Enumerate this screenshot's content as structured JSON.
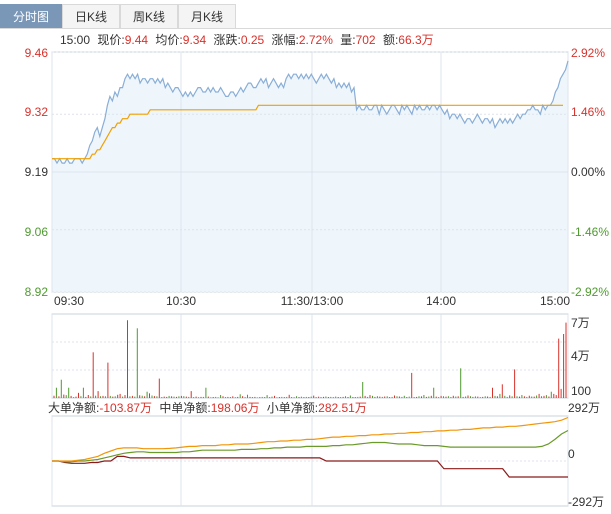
{
  "tabs": [
    {
      "label": "分时图",
      "active": true
    },
    {
      "label": "日K线",
      "active": false
    },
    {
      "label": "周K线",
      "active": false
    },
    {
      "label": "月K线",
      "active": false
    }
  ],
  "info": {
    "time": "15:00",
    "price_label": "现价:",
    "price": "9.44",
    "avg_label": "均价:",
    "avg": "9.34",
    "change_label": "涨跌:",
    "change": "0.25",
    "amp_label": "涨幅:",
    "amp": "2.72%",
    "vol_label": "量:",
    "vol": "702",
    "amount_label": "额:",
    "amount": "66.3万"
  },
  "flow": {
    "big_label": "大单净额:",
    "big_value": "-103.87万",
    "mid_label": "中单净额:",
    "mid_value": "198.06万",
    "small_label": "小单净额:",
    "small_value": "282.51万"
  },
  "colors": {
    "up": "#d9312b",
    "down": "#4e9a2f",
    "price_line": "#8aaed6",
    "avg_line": "#f0a000",
    "area_fill": "#eef6fc",
    "grid": "#dde4ec",
    "flow_big": "#8b1a1a",
    "flow_mid": "#6a9a2a",
    "flow_small": "#f0960a"
  },
  "chart_data": [
    {
      "type": "line",
      "x_ticks": [
        "09:30",
        "10:30",
        "11:30/13:00",
        "14:00",
        "15:00"
      ],
      "y_ticks_left": [
        "9.46",
        "9.32",
        "9.19",
        "9.06",
        "8.92"
      ],
      "y_ticks_right": [
        "2.92%",
        "1.46%",
        "0.00%",
        "-1.46%",
        "-2.92%"
      ],
      "ylim": [
        8.92,
        9.46
      ],
      "prev_close": 9.19,
      "series": [
        {
          "values": [
            9.22,
            9.22,
            9.21,
            9.22,
            9.21,
            9.21,
            9.22,
            9.21,
            9.21,
            9.22,
            9.22,
            9.22,
            9.21,
            9.22,
            9.23,
            9.25,
            9.26,
            9.28,
            9.29,
            9.27,
            9.29,
            9.31,
            9.34,
            9.36,
            9.35,
            9.37,
            9.36,
            9.38,
            9.38,
            9.4,
            9.41,
            9.4,
            9.41,
            9.4,
            9.41,
            9.39,
            9.4,
            9.4,
            9.39,
            9.4,
            9.4,
            9.39,
            9.4,
            9.39,
            9.4,
            9.38,
            9.39,
            9.38,
            9.37,
            9.38,
            9.38,
            9.37,
            9.36,
            9.37,
            9.36,
            9.37,
            9.36,
            9.37,
            9.38,
            9.38,
            9.37,
            9.37,
            9.38,
            9.37,
            9.38,
            9.37,
            9.37,
            9.38,
            9.37,
            9.36,
            9.36,
            9.37,
            9.37,
            9.36,
            9.37,
            9.38,
            9.37,
            9.38,
            9.39,
            9.39,
            9.38,
            9.38,
            9.39,
            9.4,
            9.39,
            9.4,
            9.38,
            9.39,
            9.4,
            9.39,
            9.38,
            9.39,
            9.38,
            9.4,
            9.41,
            9.4,
            9.41,
            9.41,
            9.4,
            9.41,
            9.4,
            9.41,
            9.4,
            9.41,
            9.4,
            9.39,
            9.4,
            9.41,
            9.4,
            9.41,
            9.4,
            9.39,
            9.4,
            9.38,
            9.39,
            9.38,
            9.39,
            9.38,
            9.39,
            9.37,
            9.38,
            9.33,
            9.34,
            9.33,
            9.33,
            9.34,
            9.33,
            9.33,
            9.34,
            9.34,
            9.32,
            9.34,
            9.33,
            9.32,
            9.33,
            9.34,
            9.34,
            9.33,
            9.32,
            9.34,
            9.33,
            9.34,
            9.33,
            9.32,
            9.34,
            9.33,
            9.34,
            9.33,
            9.33,
            9.34,
            9.33,
            9.34,
            9.34,
            9.33,
            9.34,
            9.33,
            9.32,
            9.33,
            9.31,
            9.32,
            9.32,
            9.31,
            9.32,
            9.31,
            9.3,
            9.31,
            9.31,
            9.3,
            9.31,
            9.32,
            9.31,
            9.3,
            9.31,
            9.31,
            9.3,
            9.31,
            9.29,
            9.3,
            9.31,
            9.3,
            9.31,
            9.3,
            9.31,
            9.3,
            9.31,
            9.32,
            9.31,
            9.32,
            9.32,
            9.33,
            9.33,
            9.34,
            9.33,
            9.33,
            9.32,
            9.34,
            9.33,
            9.34,
            9.34,
            9.35,
            9.37,
            9.38,
            9.4,
            9.41,
            9.42,
            9.44
          ]
        },
        {
          "values": [
            9.22,
            9.22,
            9.22,
            9.22,
            9.22,
            9.22,
            9.22,
            9.22,
            9.22,
            9.22,
            9.22,
            9.22,
            9.22,
            9.22,
            9.22,
            9.22,
            9.23,
            9.23,
            9.24,
            9.24,
            9.25,
            9.26,
            9.27,
            9.28,
            9.29,
            9.29,
            9.3,
            9.3,
            9.31,
            9.31,
            9.31,
            9.32,
            9.32,
            9.32,
            9.32,
            9.32,
            9.32,
            9.32,
            9.32,
            9.33,
            9.33,
            9.33,
            9.33,
            9.33,
            9.33,
            9.33,
            9.33,
            9.33,
            9.33,
            9.33,
            9.33,
            9.33,
            9.33,
            9.33,
            9.33,
            9.33,
            9.33,
            9.33,
            9.33,
            9.33,
            9.33,
            9.33,
            9.33,
            9.33,
            9.33,
            9.33,
            9.33,
            9.33,
            9.33,
            9.33,
            9.33,
            9.33,
            9.33,
            9.33,
            9.33,
            9.33,
            9.33,
            9.33,
            9.33,
            9.33,
            9.33,
            9.33,
            9.34,
            9.34,
            9.34,
            9.34,
            9.34,
            9.34,
            9.34,
            9.34,
            9.34,
            9.34,
            9.34,
            9.34,
            9.34,
            9.34,
            9.34,
            9.34,
            9.34,
            9.34,
            9.34,
            9.34,
            9.34,
            9.34,
            9.34,
            9.34,
            9.34,
            9.34,
            9.34,
            9.34,
            9.34,
            9.34,
            9.34,
            9.34,
            9.34,
            9.34,
            9.34,
            9.34,
            9.34,
            9.34,
            9.34,
            9.34,
            9.34,
            9.34,
            9.34,
            9.34,
            9.34,
            9.34,
            9.34,
            9.34,
            9.34,
            9.34,
            9.34,
            9.34,
            9.34,
            9.34,
            9.34,
            9.34,
            9.34,
            9.34,
            9.34,
            9.34,
            9.34,
            9.34,
            9.34,
            9.34,
            9.34,
            9.34,
            9.34,
            9.34,
            9.34,
            9.34,
            9.34,
            9.34,
            9.34,
            9.34,
            9.34,
            9.34,
            9.34,
            9.34,
            9.34,
            9.34,
            9.34,
            9.34,
            9.34,
            9.34,
            9.34,
            9.34,
            9.34,
            9.34,
            9.34,
            9.34,
            9.34,
            9.34,
            9.34,
            9.34,
            9.34,
            9.34,
            9.34,
            9.34,
            9.34,
            9.34,
            9.34,
            9.34,
            9.34,
            9.34,
            9.34,
            9.34,
            9.34,
            9.34,
            9.34,
            9.34,
            9.34,
            9.34,
            9.34,
            9.34,
            9.34,
            9.34,
            9.34,
            9.34,
            9.34,
            9.34,
            9.34,
            9.34
          ]
        }
      ]
    },
    {
      "type": "bar",
      "y_ticks": [
        "7万",
        "4万",
        "100"
      ],
      "ylim": [
        0,
        70000
      ],
      "values": [
        2000,
        9000,
        1500,
        16000,
        3000,
        2500,
        9000,
        1800,
        800,
        1200,
        4500,
        1600,
        9000,
        1000,
        2600,
        1400,
        40000,
        2000,
        6000,
        1500,
        1800,
        1500,
        31000,
        1800,
        1200,
        1500,
        2800,
        3600,
        1200,
        2500,
        68000,
        1500,
        1800,
        1200,
        61000,
        2400,
        2000,
        1500,
        5500,
        4000,
        2200,
        1700,
        1500,
        17000,
        900,
        1200,
        1000,
        1800,
        1500,
        1200,
        1000,
        1500,
        1800,
        1600,
        1200,
        1000,
        6000,
        800,
        1200,
        700,
        1000,
        1000,
        9000,
        1200,
        600,
        900,
        1000,
        500,
        2600,
        1500,
        800,
        1000,
        900,
        1500,
        700,
        1000,
        3200,
        1600,
        800,
        2800,
        1000,
        900,
        1000,
        500,
        800,
        1000,
        800,
        2500,
        700,
        1200,
        1800,
        600,
        900,
        1000,
        800,
        1000,
        2800,
        900,
        600,
        1600,
        900,
        1100,
        800,
        1000,
        900,
        1200,
        2100,
        900,
        1100,
        900,
        1000,
        1300,
        900,
        1000,
        700,
        1200,
        900,
        800,
        1000,
        1600,
        900,
        2200,
        900,
        800,
        1000,
        1200,
        14000,
        1800,
        1000,
        2500,
        1800,
        1000,
        1600,
        1200,
        1000,
        1300,
        1500,
        800,
        1000,
        2200,
        1600,
        1300,
        1000,
        1900,
        900,
        1200,
        22000,
        900,
        1000,
        1600,
        1400,
        2600,
        1000,
        1300,
        1900,
        9000,
        1200,
        800,
        1800,
        1500,
        1200,
        1600,
        800,
        1900,
        1300,
        1500,
        26000,
        1000,
        1300,
        2200,
        1500,
        1000,
        1400,
        1200,
        800,
        1000,
        1500,
        1300,
        1000,
        9000,
        1800,
        1500,
        3600,
        12000,
        1900,
        1000,
        2300,
        1500,
        25000,
        1600,
        1200,
        2600,
        1500,
        1000,
        2000,
        1300,
        1200,
        2200,
        3600,
        1500,
        1800,
        2500,
        1300,
        5500,
        3600,
        2500,
        52000,
        8000,
        56000,
        66000
      ],
      "colors": [
        "up",
        "down",
        "up",
        "down",
        "up",
        "down",
        "down",
        "up",
        "down",
        "up",
        "up",
        "down",
        "down",
        "up",
        "up",
        "down",
        "up",
        "down",
        "up",
        "down",
        "up",
        "down",
        "up",
        "down",
        "up",
        "down",
        "up",
        "up",
        "down",
        "up",
        "up",
        "down",
        "up",
        "down",
        "down",
        "up",
        "down",
        "up",
        "down",
        "up",
        "down",
        "up",
        "down",
        "up",
        "down",
        "up",
        "up",
        "down",
        "up",
        "down",
        "up",
        "down",
        "up",
        "down",
        "up",
        "down",
        "up",
        "down",
        "up",
        "down",
        "up",
        "down",
        "down",
        "up",
        "down",
        "up",
        "down",
        "up",
        "down",
        "up",
        "down",
        "up",
        "down",
        "up",
        "down",
        "up",
        "down",
        "up",
        "down",
        "down",
        "up",
        "down",
        "up",
        "down",
        "up",
        "down",
        "up",
        "down",
        "up",
        "down",
        "up",
        "down",
        "up",
        "down",
        "up",
        "down",
        "up",
        "down",
        "up",
        "down",
        "up",
        "down",
        "up",
        "down",
        "up",
        "down",
        "up",
        "down",
        "up",
        "down",
        "up",
        "down",
        "up",
        "down",
        "up",
        "down",
        "up",
        "down",
        "up",
        "down",
        "up",
        "down",
        "up",
        "up",
        "down",
        "up",
        "down",
        "up",
        "down",
        "up",
        "down",
        "up",
        "down",
        "up",
        "down",
        "up",
        "down",
        "up",
        "down",
        "up",
        "down",
        "up",
        "down",
        "down",
        "up",
        "down",
        "up",
        "down",
        "up",
        "down",
        "up",
        "down",
        "up",
        "down",
        "up",
        "down",
        "up",
        "down",
        "up",
        "down",
        "up",
        "down",
        "up",
        "up",
        "down",
        "up",
        "down",
        "up",
        "down",
        "up",
        "down",
        "up",
        "down",
        "up",
        "down",
        "up",
        "down",
        "up",
        "down",
        "up",
        "down",
        "up",
        "down",
        "up",
        "down",
        "down",
        "up",
        "down",
        "up",
        "down",
        "up",
        "down",
        "up",
        "down",
        "up",
        "down",
        "up",
        "down",
        "up",
        "down",
        "up",
        "down",
        "up",
        "down",
        "up",
        "up",
        "up",
        "up",
        "up",
        "up"
      ]
    },
    {
      "type": "line",
      "y_ticks": [
        "292万",
        "0",
        "-292万"
      ],
      "ylim": [
        -292,
        292
      ],
      "series": [
        {
          "name": "大单净额",
          "color_key": "flow_big",
          "values": [
            0,
            0,
            -10,
            -15,
            -15,
            -15,
            -10,
            -10,
            0,
            0,
            30,
            30,
            20,
            20,
            20,
            20,
            20,
            20,
            20,
            20,
            20,
            20,
            20,
            20,
            20,
            20,
            20,
            20,
            20,
            20,
            20,
            20,
            20,
            20,
            20,
            20,
            20,
            20,
            20,
            20,
            20,
            20,
            0,
            0,
            0,
            0,
            0,
            0,
            0,
            0,
            0,
            0,
            0,
            0,
            0,
            0,
            0,
            0,
            0,
            0,
            -50,
            -50,
            -50,
            -50,
            -50,
            -50,
            -50,
            -50,
            -50,
            -50,
            -103.87,
            -103.87,
            -103.87,
            -103.87,
            -103.87,
            -103.87,
            -103.87,
            -103.87,
            -103.87,
            -103.87
          ]
        },
        {
          "name": "中单净额",
          "color_key": "flow_mid",
          "values": [
            0,
            0,
            -5,
            -5,
            0,
            0,
            5,
            10,
            20,
            30,
            40,
            50,
            55,
            60,
            60,
            55,
            55,
            55,
            55,
            55,
            60,
            60,
            65,
            70,
            70,
            70,
            70,
            70,
            70,
            75,
            75,
            75,
            80,
            80,
            85,
            85,
            90,
            90,
            90,
            95,
            95,
            95,
            95,
            100,
            100,
            105,
            105,
            110,
            115,
            120,
            120,
            120,
            115,
            110,
            110,
            110,
            105,
            100,
            100,
            100,
            95,
            90,
            90,
            90,
            90,
            90,
            90,
            90,
            90,
            90,
            90,
            90,
            90,
            90,
            90,
            95,
            110,
            140,
            175,
            198.06
          ]
        },
        {
          "name": "小单净额",
          "color_key": "flow_small",
          "values": [
            0,
            0,
            0,
            0,
            5,
            10,
            20,
            30,
            50,
            65,
            80,
            85,
            85,
            85,
            80,
            80,
            80,
            80,
            82,
            85,
            90,
            95,
            95,
            100,
            100,
            100,
            105,
            105,
            110,
            110,
            110,
            115,
            120,
            125,
            125,
            130,
            130,
            135,
            135,
            140,
            140,
            145,
            150,
            155,
            155,
            160,
            160,
            165,
            165,
            170,
            170,
            175,
            175,
            180,
            180,
            185,
            185,
            190,
            190,
            195,
            195,
            200,
            200,
            205,
            205,
            210,
            215,
            215,
            220,
            220,
            225,
            225,
            230,
            235,
            240,
            245,
            250,
            255,
            265,
            282.51
          ]
        }
      ]
    }
  ]
}
